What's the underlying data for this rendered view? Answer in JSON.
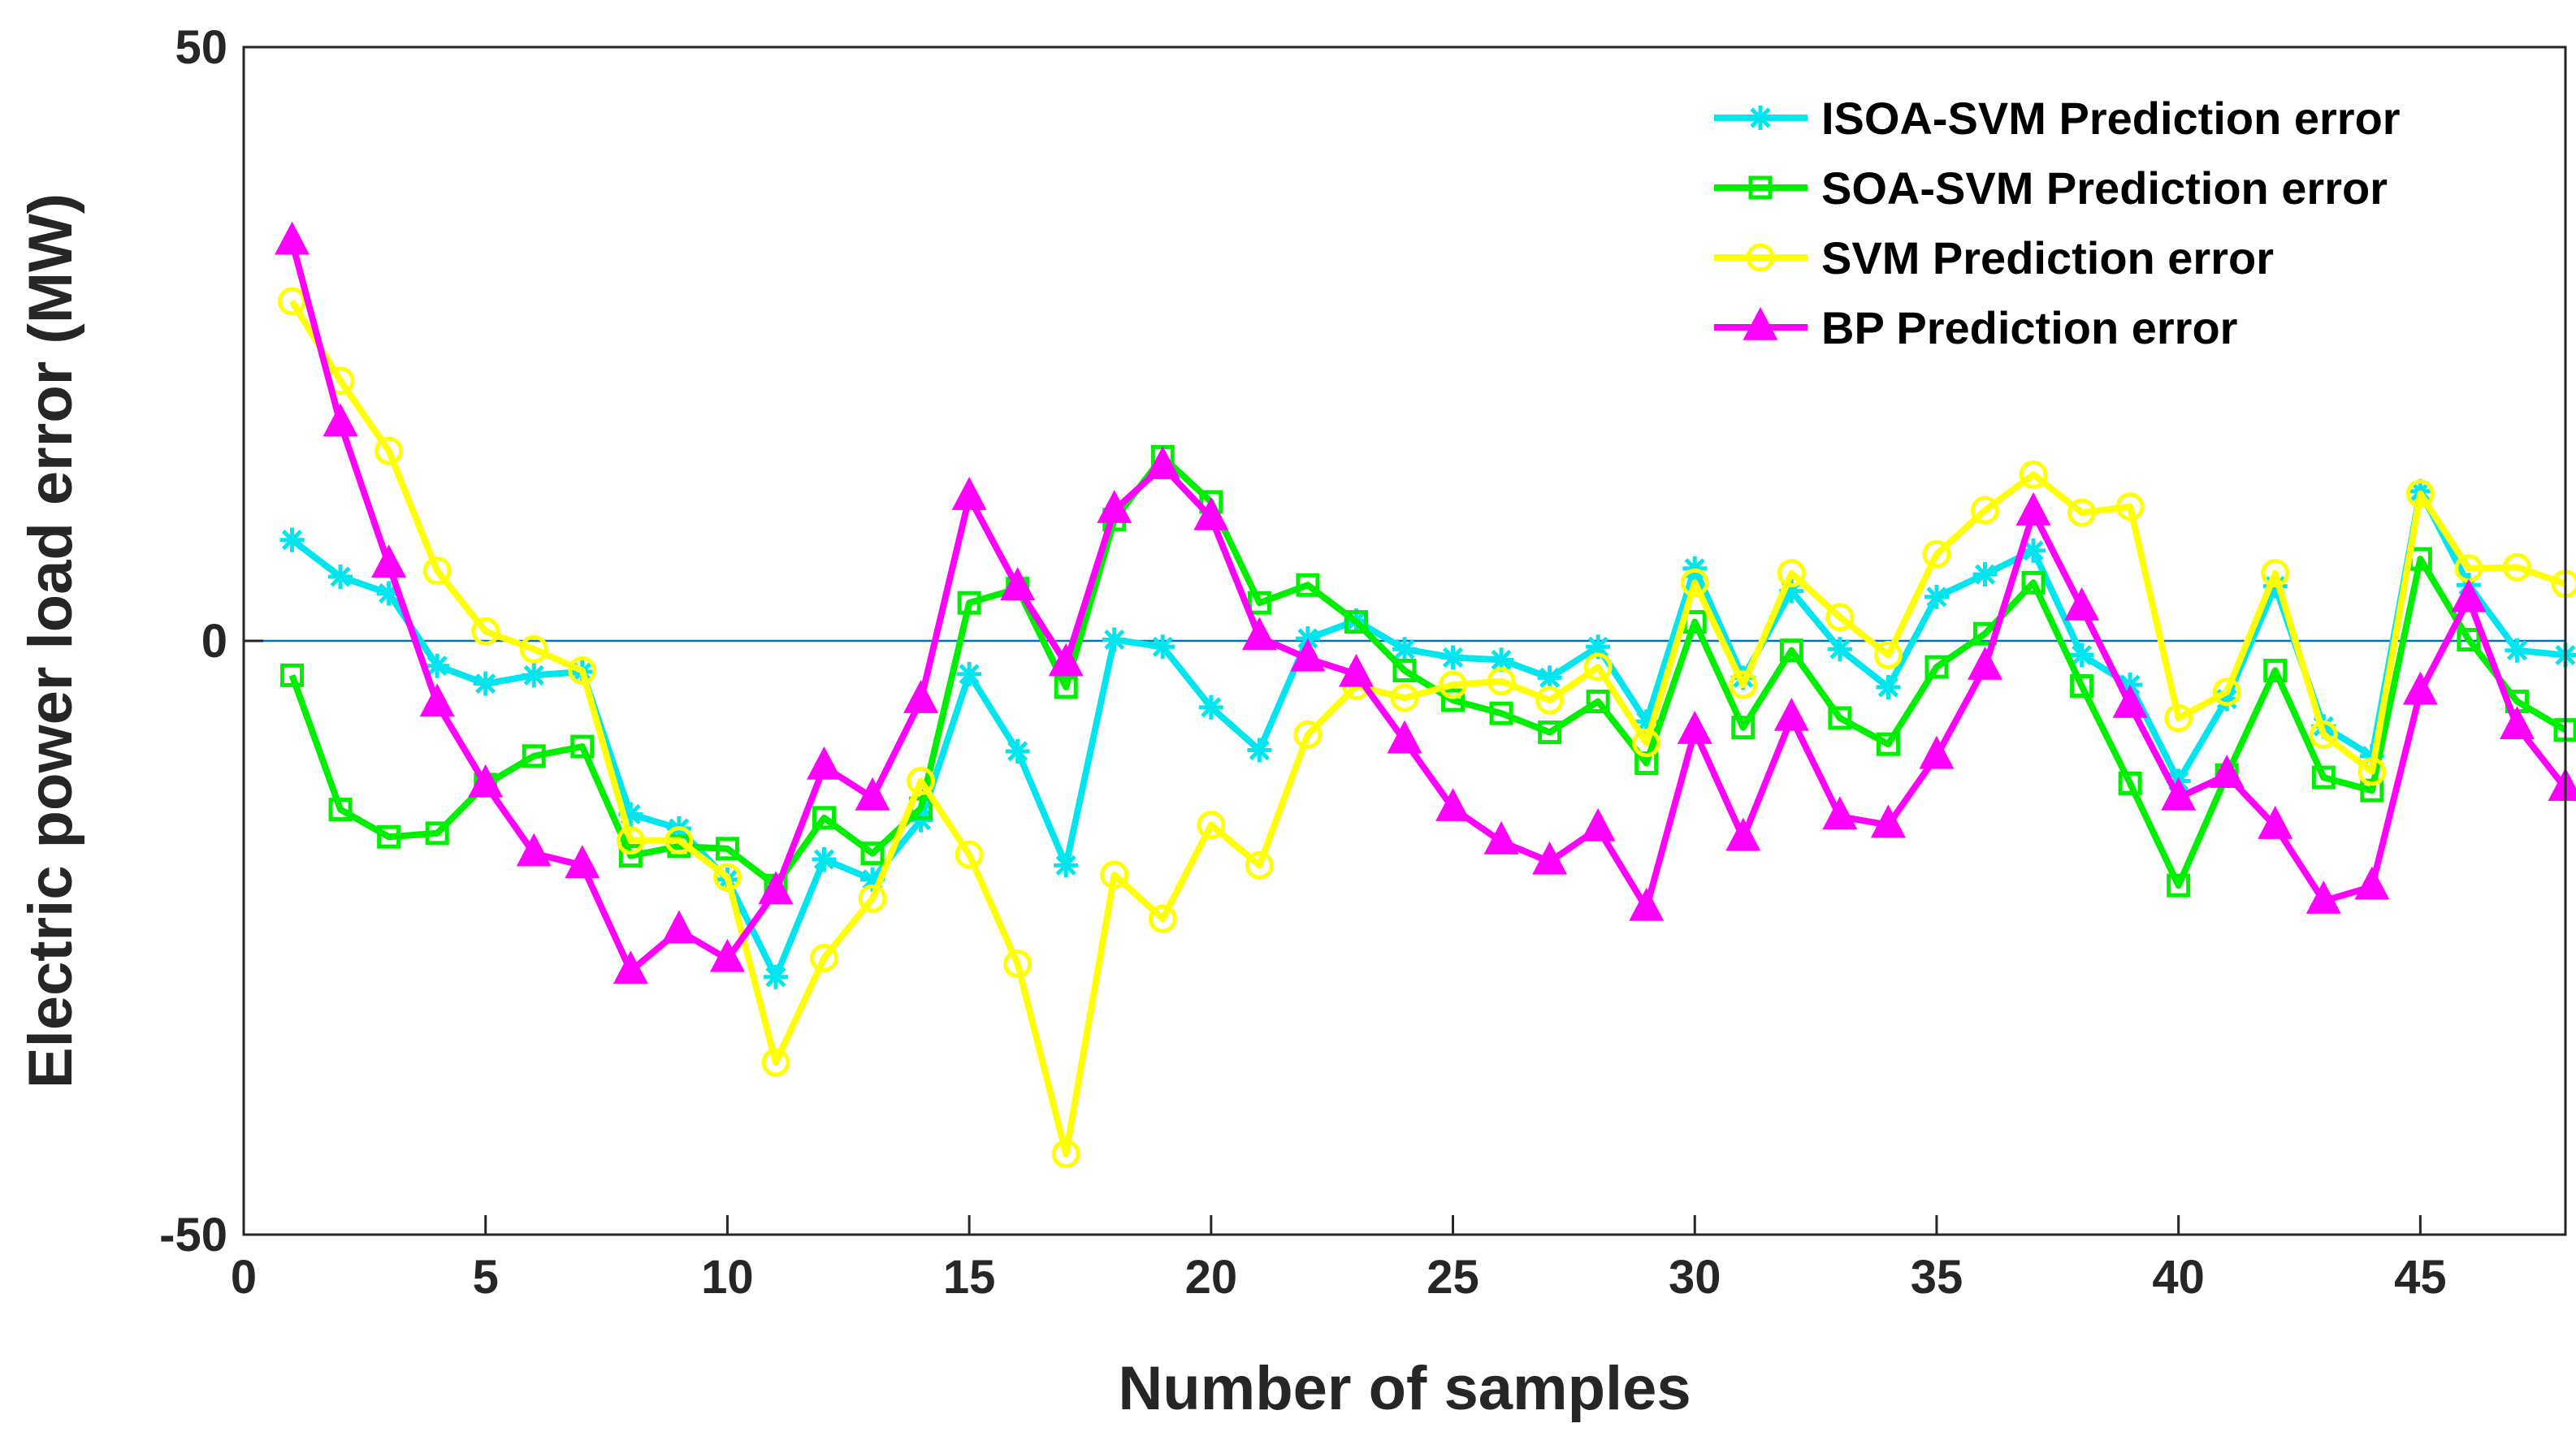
{
  "chart_data": {
    "type": "line",
    "title": "",
    "xlabel": "Number of samples",
    "ylabel": "Electric power load error (MW)",
    "xlim": [
      0,
      48
    ],
    "ylim": [
      -50,
      50
    ],
    "xticks": [
      0,
      5,
      10,
      15,
      20,
      25,
      30,
      35,
      40,
      45
    ],
    "yticks": [
      -50,
      0,
      50
    ],
    "xtick_labels": [
      "0",
      "5",
      "10",
      "15",
      "20",
      "25",
      "30",
      "35",
      "40",
      "45"
    ],
    "ytick_labels": [
      "-50",
      "0",
      "50"
    ],
    "zero_line": true,
    "grid": false,
    "legend_position": "top-right",
    "x": [
      1,
      2,
      3,
      4,
      5,
      6,
      7,
      8,
      9,
      10,
      11,
      12,
      13,
      14,
      15,
      16,
      17,
      18,
      19,
      20,
      21,
      22,
      23,
      24,
      25,
      26,
      27,
      28,
      29,
      30,
      31,
      32,
      33,
      34,
      35,
      36,
      37,
      38,
      39,
      40,
      41,
      42,
      43,
      44,
      45,
      46,
      47,
      48
    ],
    "series": [
      {
        "name": "ISOA-SVM Prediction error",
        "color": "#00e5ee",
        "marker": "asterisk",
        "values": [
          8.5,
          5.4,
          4.0,
          -2.1,
          -3.6,
          -2.9,
          -2.6,
          -14.6,
          -15.8,
          -20.1,
          -28.3,
          -18.4,
          -20.1,
          -15.1,
          -2.8,
          -9.3,
          -18.9,
          0.1,
          -0.5,
          -5.6,
          -9.2,
          0.2,
          1.7,
          -0.7,
          -1.4,
          -1.6,
          -3.1,
          -0.5,
          -6.8,
          6.1,
          -3.1,
          4.2,
          -0.7,
          -3.9,
          3.7,
          5.6,
          7.6,
          -1.2,
          -3.7,
          -11.8,
          -4.9,
          4.6,
          -7.2,
          -9.7,
          12.6,
          4.7,
          -0.8,
          -1.2
        ]
      },
      {
        "name": "SOA-SVM Prediction error",
        "color": "#00ee00",
        "marker": "square",
        "values": [
          -2.9,
          -14.2,
          -16.5,
          -16.2,
          -12.1,
          -9.7,
          -8.9,
          -18.1,
          -17.3,
          -17.5,
          -20.6,
          -14.9,
          -17.9,
          -14.1,
          3.2,
          4.4,
          -3.9,
          10.2,
          15.5,
          11.7,
          3.2,
          4.7,
          1.6,
          -2.5,
          -5.0,
          -6.1,
          -7.7,
          -5.1,
          -10.3,
          1.6,
          -7.3,
          -0.8,
          -6.5,
          -8.7,
          -2.2,
          0.6,
          4.9,
          -3.8,
          -12.0,
          -20.6,
          -11.3,
          -2.5,
          -11.5,
          -12.6,
          6.9,
          0.1,
          -5.1,
          -7.5
        ]
      },
      {
        "name": "SVM Prediction error",
        "color": "#ffff00",
        "marker": "circle",
        "values": [
          28.6,
          21.9,
          16.0,
          5.9,
          0.8,
          -0.7,
          -2.5,
          -16.8,
          -16.8,
          -19.9,
          -35.5,
          -26.7,
          -21.7,
          -11.8,
          -18.0,
          -27.2,
          -43.2,
          -19.7,
          -23.4,
          -15.5,
          -18.9,
          -7.9,
          -3.8,
          -4.8,
          -3.7,
          -3.4,
          -5.0,
          -2.2,
          -8.6,
          4.9,
          -3.7,
          5.7,
          2.0,
          -1.2,
          7.3,
          11.0,
          14.0,
          10.8,
          11.3,
          -6.5,
          -4.3,
          5.7,
          -7.9,
          -11.0,
          12.4,
          6.1,
          6.2,
          4.8
        ]
      },
      {
        "name": "BP Prediction error",
        "color": "#ff00ff",
        "marker": "triangle",
        "values": [
          33.6,
          18.3,
          6.4,
          -5.3,
          -12.1,
          -17.9,
          -18.9,
          -27.8,
          -24.4,
          -26.8,
          -21.1,
          -10.6,
          -13.2,
          -5.0,
          12.1,
          4.5,
          -1.9,
          11.0,
          14.7,
          10.4,
          0.3,
          -1.5,
          -2.8,
          -8.4,
          -14.1,
          -16.9,
          -18.6,
          -15.8,
          -22.5,
          -7.6,
          -16.6,
          -6.5,
          -14.8,
          -15.5,
          -9.7,
          -2.2,
          10.8,
          2.8,
          -5.4,
          -13.2,
          -11.3,
          -15.6,
          -21.9,
          -20.7,
          -4.3,
          3.5,
          -7.2,
          -12.4
        ]
      }
    ]
  }
}
